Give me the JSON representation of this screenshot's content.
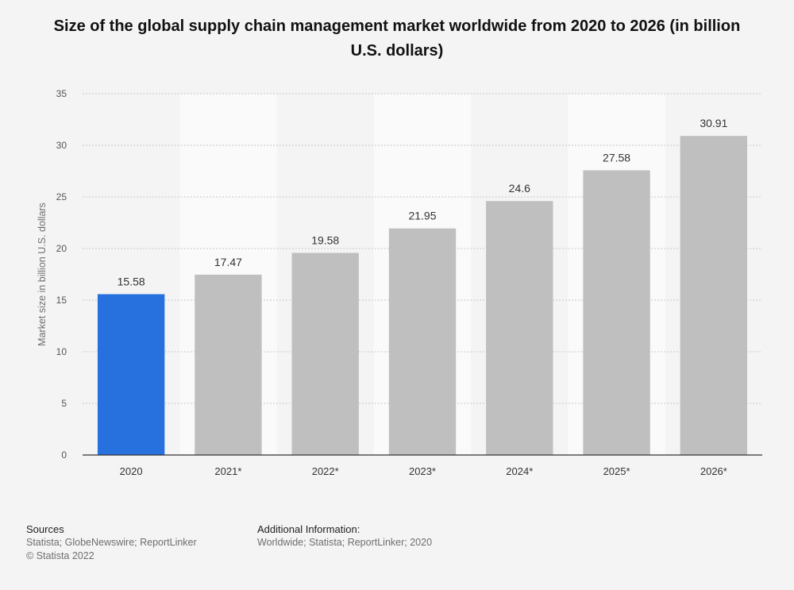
{
  "chart_data": {
    "type": "bar",
    "title": "Size of the global supply chain management market worldwide from 2020 to 2026 (in billion U.S. dollars)",
    "xlabel": "",
    "ylabel": "Market size in billion U.S. dollars",
    "categories": [
      "2020",
      "2021*",
      "2022*",
      "2023*",
      "2024*",
      "2025*",
      "2026*"
    ],
    "values": [
      15.58,
      17.47,
      19.58,
      21.95,
      24.6,
      27.58,
      30.91
    ],
    "value_labels": [
      "15.58",
      "17.47",
      "19.58",
      "21.95",
      "24.6",
      "27.58",
      "30.91"
    ],
    "ylim": [
      0,
      35
    ],
    "yticks": [
      0,
      5,
      10,
      15,
      20,
      25,
      30,
      35
    ],
    "grid": true,
    "colors": {
      "highlight": "#2671de",
      "bar": "#bfbfbf",
      "grid": "#c8c8c8",
      "band": "#fafafa",
      "axis": "#333333"
    }
  },
  "footer": {
    "sources_heading": "Sources",
    "sources_line1": "Statista; GlobeNewswire; ReportLinker",
    "sources_line2": "© Statista 2022",
    "additional_heading": "Additional Information:",
    "additional_line1": "Worldwide; Statista; ReportLinker; 2020"
  }
}
